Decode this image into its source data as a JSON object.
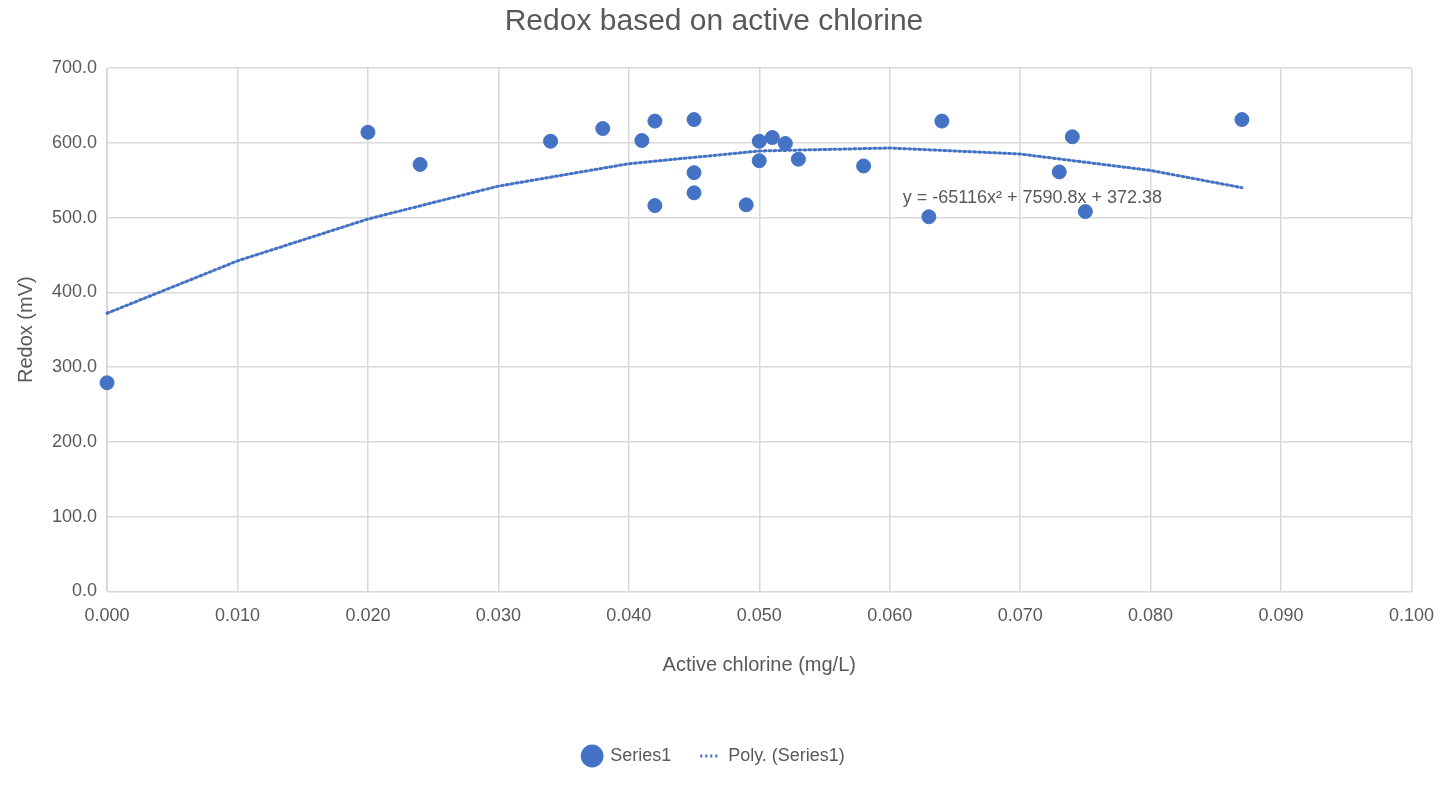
{
  "chart_data": {
    "type": "scatter",
    "title": "Redox based on active chlorine",
    "xlabel": "Active chlorine (mg/L)",
    "ylabel": "Redox (mV)",
    "xlim": [
      0,
      0.1
    ],
    "ylim": [
      0,
      700
    ],
    "xticks": [
      {
        "value": 0,
        "label": "0.000"
      },
      {
        "value": 0.01,
        "label": "0.010"
      },
      {
        "value": 0.02,
        "label": "0.020"
      },
      {
        "value": 0.03,
        "label": "0.030"
      },
      {
        "value": 0.04,
        "label": "0.040"
      },
      {
        "value": 0.05,
        "label": "0.050"
      },
      {
        "value": 0.06,
        "label": "0.060"
      },
      {
        "value": 0.07,
        "label": "0.070"
      },
      {
        "value": 0.08,
        "label": "0.080"
      },
      {
        "value": 0.09,
        "label": "0.090"
      },
      {
        "value": 0.1,
        "label": "0.100"
      }
    ],
    "yticks": [
      {
        "value": 0,
        "label": "0.0"
      },
      {
        "value": 100,
        "label": "100.0"
      },
      {
        "value": 200,
        "label": "200.0"
      },
      {
        "value": 300,
        "label": "300.0"
      },
      {
        "value": 400,
        "label": "400.0"
      },
      {
        "value": 500,
        "label": "500.0"
      },
      {
        "value": 600,
        "label": "600.0"
      },
      {
        "value": 700,
        "label": "700.0"
      }
    ],
    "grid": true,
    "legend": "bottom",
    "marker": "circle",
    "series": [
      {
        "name": "Series1",
        "color": "#4472c4",
        "x": [
          0,
          0.02,
          0.024,
          0.034,
          0.038,
          0.041,
          0.042,
          0.042,
          0.045,
          0.045,
          0.045,
          0.049,
          0.05,
          0.05,
          0.051,
          0.052,
          0.053,
          0.058,
          0.063,
          0.064,
          0.073,
          0.074,
          0.075,
          0.087
        ],
        "values": [
          279,
          614,
          571,
          602,
          619,
          603,
          629,
          516,
          631,
          560,
          533,
          517,
          602,
          576,
          607,
          599,
          578,
          569,
          501,
          629,
          561,
          608,
          508,
          631
        ]
      },
      {
        "name": "Poly. (Series1)",
        "type": "line",
        "line_style": "dotted",
        "marker": "none",
        "color": "#4472c4",
        "x": [
          0,
          0.01,
          0.02,
          0.03,
          0.04,
          0.05,
          0.06,
          0.07,
          0.08,
          0.087
        ],
        "values": [
          372,
          442,
          498,
          542,
          572,
          589,
          593,
          585,
          563,
          540
        ]
      }
    ],
    "annotations": [
      "y = -65116x² + 7590.8x + 372.38"
    ]
  }
}
